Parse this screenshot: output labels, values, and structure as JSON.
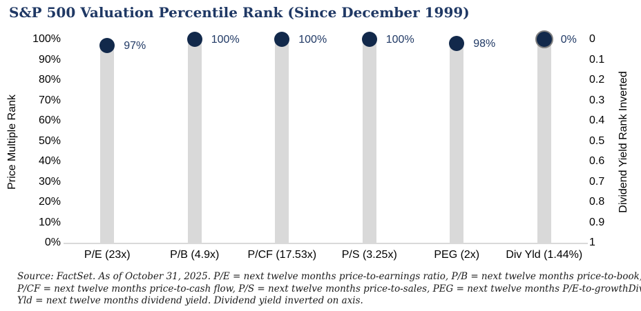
{
  "title": "S&P 500 Valuation Percentile Rank (Since December 1999)",
  "colors": {
    "navy": "#12294B",
    "title_navy": "#1F3864",
    "bar_gray": "#D9D9D9",
    "marker_border_gray": "#808080",
    "axis_line_gray": "#D9D9D9",
    "text_black": "#000000"
  },
  "chart_data": {
    "type": "bar",
    "title": "S&P 500 Valuation Percentile Rank (Since December 1999)",
    "categories": [
      "P/E (23x)",
      "P/B (4.9x)",
      "P/CF (17.53x)",
      "P/S (3.25x)",
      "PEG (2x)",
      "Div Yld (1.44%)"
    ],
    "points": [
      {
        "category": "P/E (23x)",
        "value": 97,
        "label": "97%",
        "axis": "primary"
      },
      {
        "category": "P/B (4.9x)",
        "value": 100,
        "label": "100%",
        "axis": "primary"
      },
      {
        "category": "P/CF (17.53x)",
        "value": 100,
        "label": "100%",
        "axis": "primary"
      },
      {
        "category": "P/S (3.25x)",
        "value": 100,
        "label": "100%",
        "axis": "primary"
      },
      {
        "category": "PEG (2x)",
        "value": 98,
        "label": "98%",
        "axis": "primary"
      },
      {
        "category": "Div Yld (1.44%)",
        "value": 0,
        "label": "0%",
        "axis": "secondary_inverted"
      }
    ],
    "left_axis": {
      "label": "Price Multiple Rank",
      "ticks": [
        "100%",
        "90%",
        "80%",
        "70%",
        "60%",
        "50%",
        "40%",
        "30%",
        "20%",
        "10%",
        "0%"
      ],
      "range": [
        0,
        100
      ]
    },
    "right_axis": {
      "label": "Dividend Yield Rank Inverted",
      "ticks": [
        "0",
        "0.1",
        "0.2",
        "0.3",
        "0.4",
        "0.5",
        "0.6",
        "0.7",
        "0.8",
        "0.9",
        "1"
      ],
      "range": [
        0,
        1
      ],
      "inverted": true
    },
    "gridlines": false,
    "legend": "none"
  },
  "footnote": {
    "lines": [
      "Source: FactSet. As of October 31, 2025. P/E = next twelve months price-to-earnings ratio, P/B = next twelve months price-to-book,",
      "P/CF = next twelve months price-to-cash flow, P/S = next twelve months price-to-sales, PEG = next twelve months P/E-to-growthDiv",
      "Yld = next twelve months dividend yield. Dividend yield inverted on axis."
    ]
  }
}
